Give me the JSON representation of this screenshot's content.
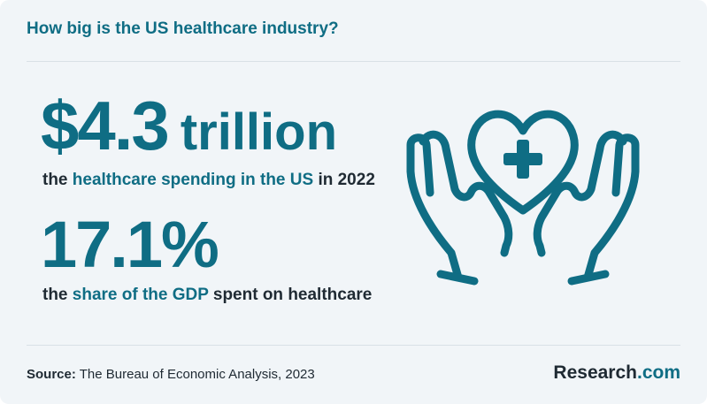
{
  "header": {
    "title": "How big is the US healthcare industry?"
  },
  "stats": [
    {
      "value": "$4.3",
      "unit": "trillion",
      "caption_prefix": "the ",
      "caption_highlight": "healthcare spending in the US",
      "caption_suffix": " in 2022"
    },
    {
      "value": "17.1%",
      "caption_prefix": "the ",
      "caption_highlight": "share of the GDP",
      "caption_suffix": " spent on healthcare"
    }
  ],
  "illustration": {
    "icon": "hands-holding-heart-medical-cross-icon"
  },
  "footer": {
    "source_label": "Source:",
    "source_text": " The Bureau of Economic Analysis, 2023",
    "brand_name": "Research",
    "brand_domain": ".com"
  },
  "colors": {
    "accent": "#0f6d84",
    "text": "#1f2a33",
    "background": "#f1f5f8",
    "divider": "#d9e1e6"
  }
}
